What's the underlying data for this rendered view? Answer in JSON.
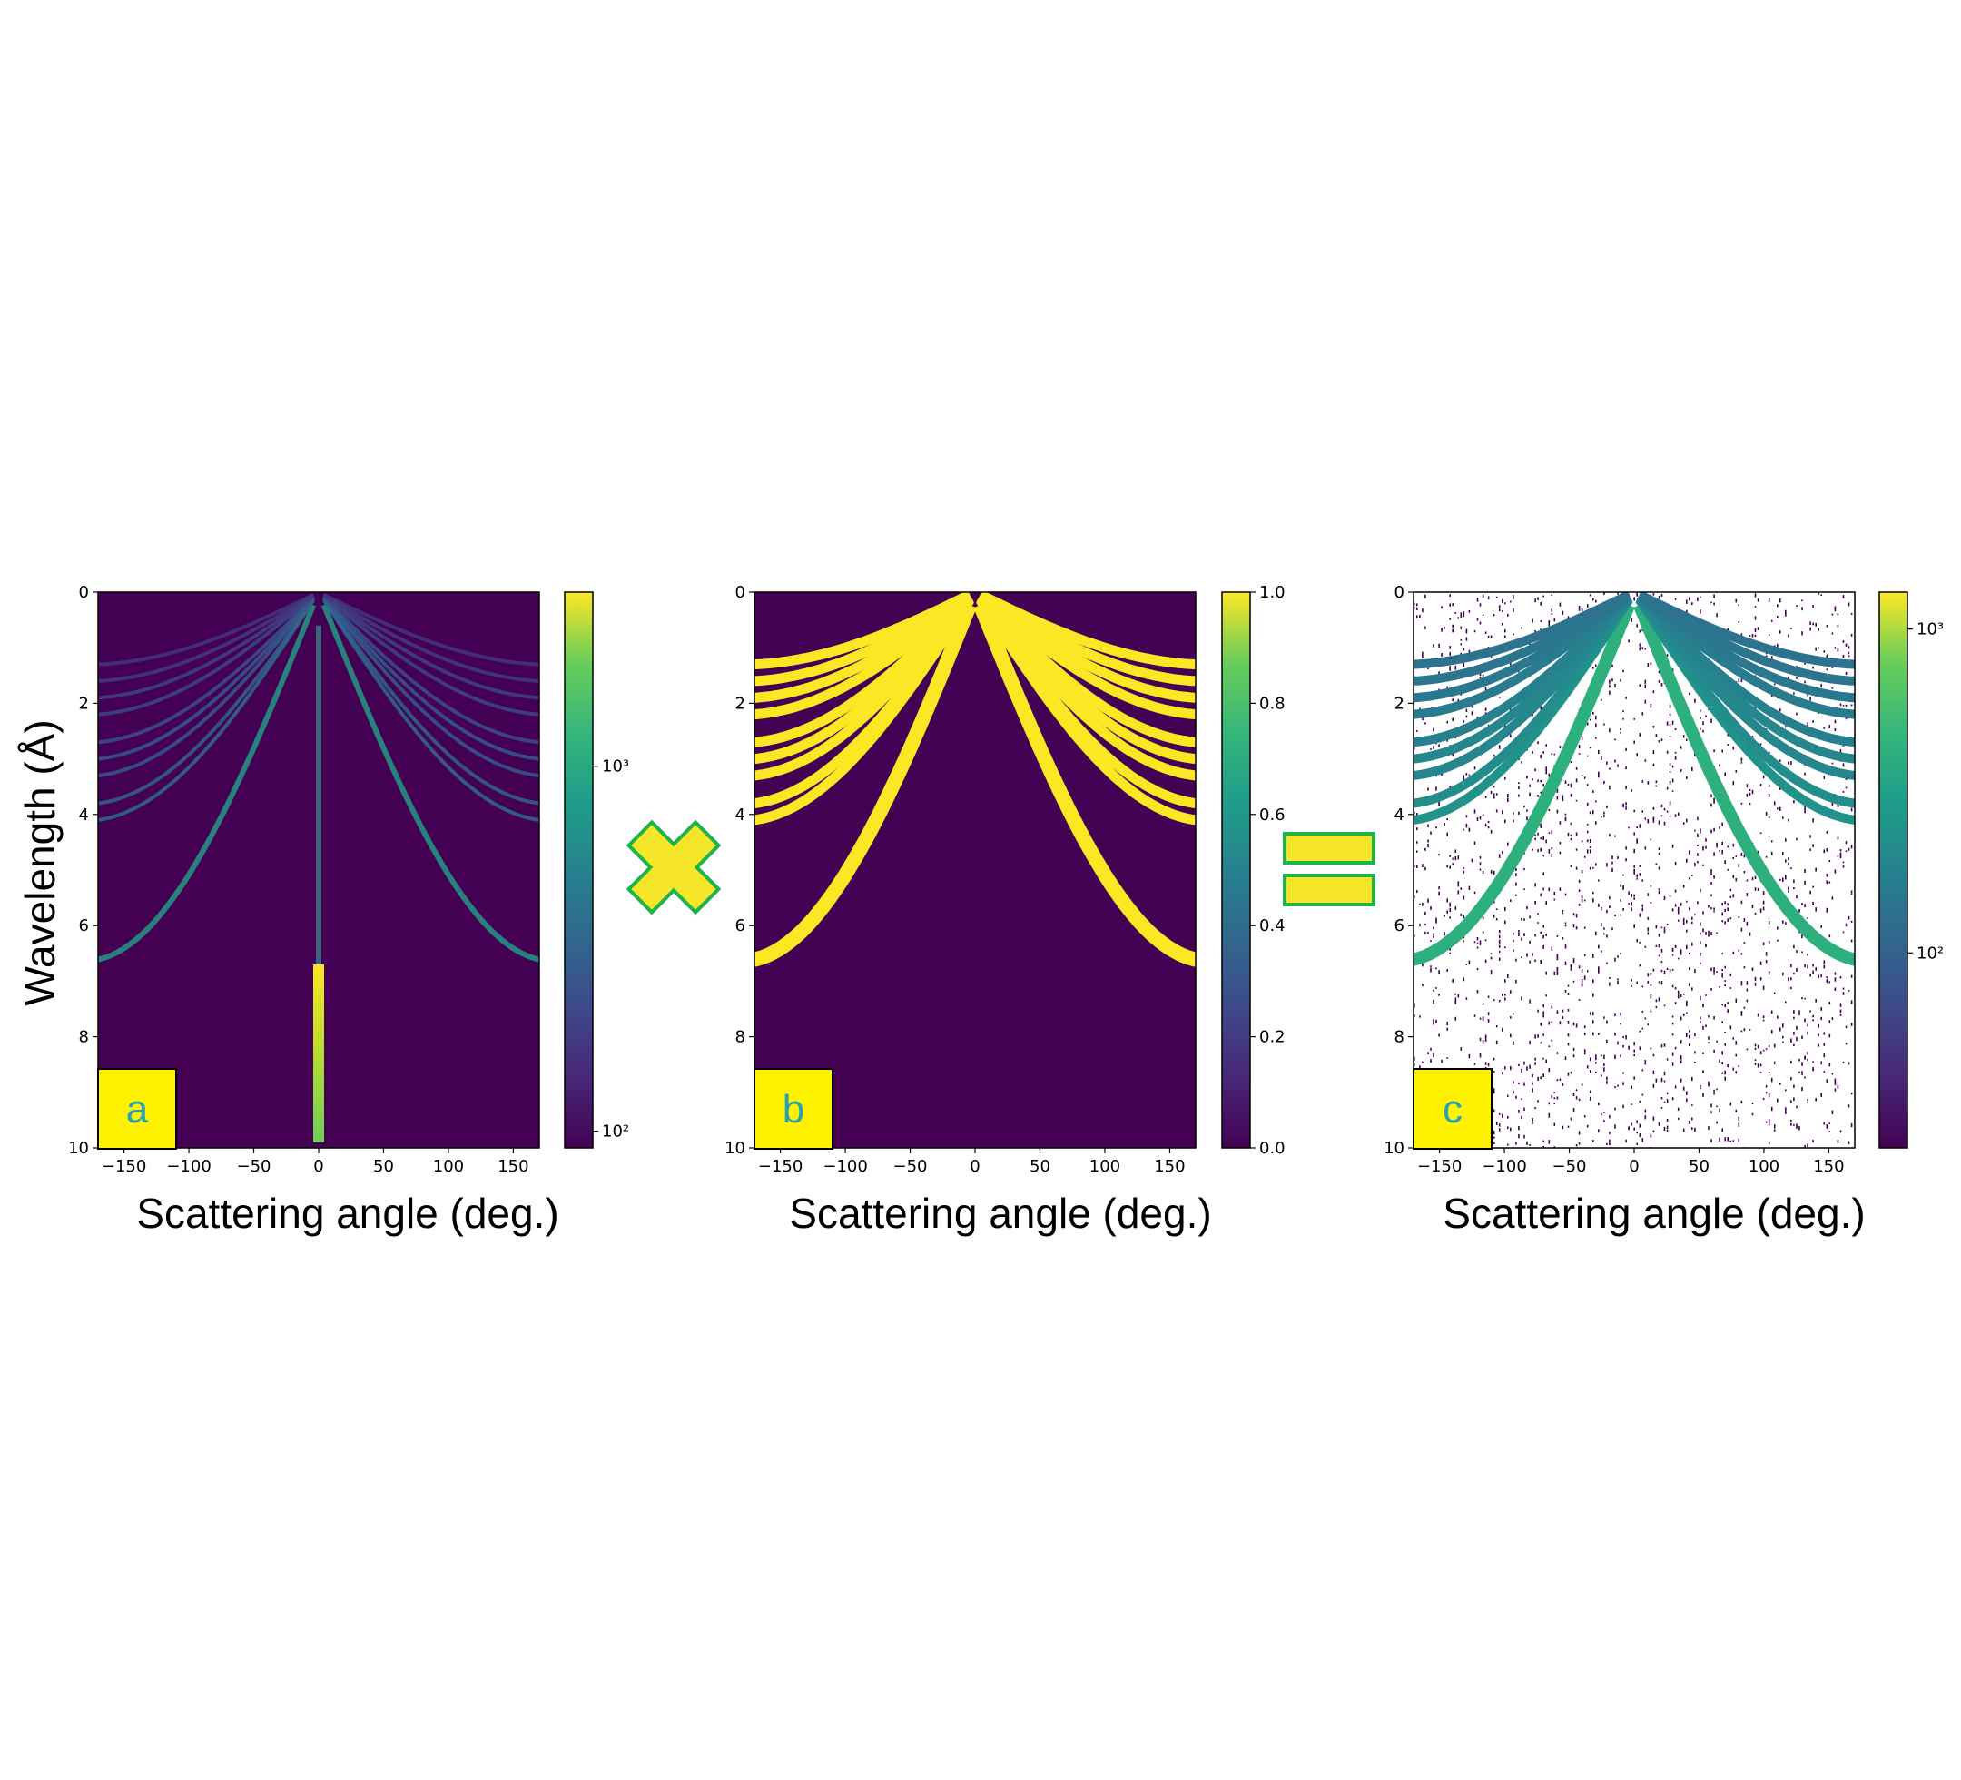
{
  "figure": {
    "ylabel": "Wavelength (Å)",
    "xlabel": "Scattering angle (deg.)",
    "operators": [
      "multiply",
      "equals"
    ],
    "accent_colors": {
      "operator_fill": "#f6e62a",
      "operator_stroke": "#1db34a",
      "label_box": "#fff200"
    }
  },
  "chart_data": [
    {
      "type": "heatmap",
      "panel_label": "a",
      "xlabel": "Scattering angle (deg.)",
      "ylabel": "Wavelength (Å)",
      "xlim": [
        -170,
        170
      ],
      "ylim": [
        10,
        0
      ],
      "xticks": [
        "−150",
        "−100",
        "−50",
        "0",
        "50",
        "100",
        "150"
      ],
      "xtick_values": [
        -150,
        -100,
        -50,
        0,
        50,
        100,
        150
      ],
      "yticks": [
        "0",
        "2",
        "4",
        "6",
        "8",
        "10"
      ],
      "ytick_values": [
        0,
        2,
        4,
        6,
        8,
        10
      ],
      "colorscale": "viridis",
      "colorbar": {
        "scale": "log",
        "ticks": [
          "10³",
          "10²"
        ],
        "tick_values": [
          1000,
          100
        ],
        "range": [
          90,
          3000
        ]
      },
      "features": {
        "bragg_curves": [
          {
            "lambda_max": 6.6,
            "angle_max": 168,
            "intensity": 0.75
          },
          {
            "lambda_max": 4.1,
            "angle_max": 170,
            "intensity": 0.5
          },
          {
            "lambda_max": 3.8,
            "angle_max": 170,
            "intensity": 0.45
          },
          {
            "lambda_max": 3.3,
            "angle_max": 170,
            "intensity": 0.4
          },
          {
            "lambda_max": 3.0,
            "angle_max": 170,
            "intensity": 0.4
          },
          {
            "lambda_max": 2.7,
            "angle_max": 170,
            "intensity": 0.35
          },
          {
            "lambda_max": 2.2,
            "angle_max": 170,
            "intensity": 0.3
          },
          {
            "lambda_max": 1.9,
            "angle_max": 170,
            "intensity": 0.28
          },
          {
            "lambda_max": 1.6,
            "angle_max": 170,
            "intensity": 0.25
          },
          {
            "lambda_max": 1.3,
            "angle_max": 170,
            "intensity": 0.22
          }
        ],
        "direct_beam": {
          "angle": 0,
          "lambda_range": [
            0.6,
            9.9
          ],
          "bright_from": 6.7
        }
      }
    },
    {
      "type": "heatmap",
      "panel_label": "b",
      "xlabel": "Scattering angle (deg.)",
      "xlim": [
        -170,
        170
      ],
      "ylim": [
        10,
        0
      ],
      "xticks": [
        "−150",
        "−100",
        "−50",
        "0",
        "50",
        "100",
        "150"
      ],
      "xtick_values": [
        -150,
        -100,
        -50,
        0,
        50,
        100,
        150
      ],
      "yticks": [
        "0",
        "2",
        "4",
        "6",
        "8",
        "10"
      ],
      "ytick_values": [
        0,
        2,
        4,
        6,
        8,
        10
      ],
      "colorscale": "viridis",
      "colorbar": {
        "scale": "linear",
        "ticks": [
          "1.0",
          "0.8",
          "0.6",
          "0.4",
          "0.2",
          "0.0"
        ],
        "tick_values": [
          1.0,
          0.8,
          0.6,
          0.4,
          0.2,
          0.0
        ],
        "range": [
          0,
          1
        ]
      },
      "features": {
        "mask": "binary mask of Bragg curves (value 1 inside, 0 outside)"
      }
    },
    {
      "type": "heatmap",
      "panel_label": "c",
      "xlabel": "Scattering angle (deg.)",
      "xlim": [
        -170,
        170
      ],
      "ylim": [
        10,
        0
      ],
      "xticks": [
        "−150",
        "−100",
        "−50",
        "0",
        "50",
        "100",
        "150"
      ],
      "xtick_values": [
        -150,
        -100,
        -50,
        0,
        50,
        100,
        150
      ],
      "yticks": [
        "0",
        "2",
        "4",
        "6",
        "8",
        "10"
      ],
      "ytick_values": [
        0,
        2,
        4,
        6,
        8,
        10
      ],
      "colorscale": "viridis",
      "colorbar": {
        "scale": "log",
        "ticks": [
          "10³",
          "10²"
        ],
        "tick_values": [
          1000,
          100
        ],
        "range": [
          25,
          1300
        ]
      },
      "features": {
        "product": "panel a × panel b, sparse noise on white background"
      }
    }
  ]
}
